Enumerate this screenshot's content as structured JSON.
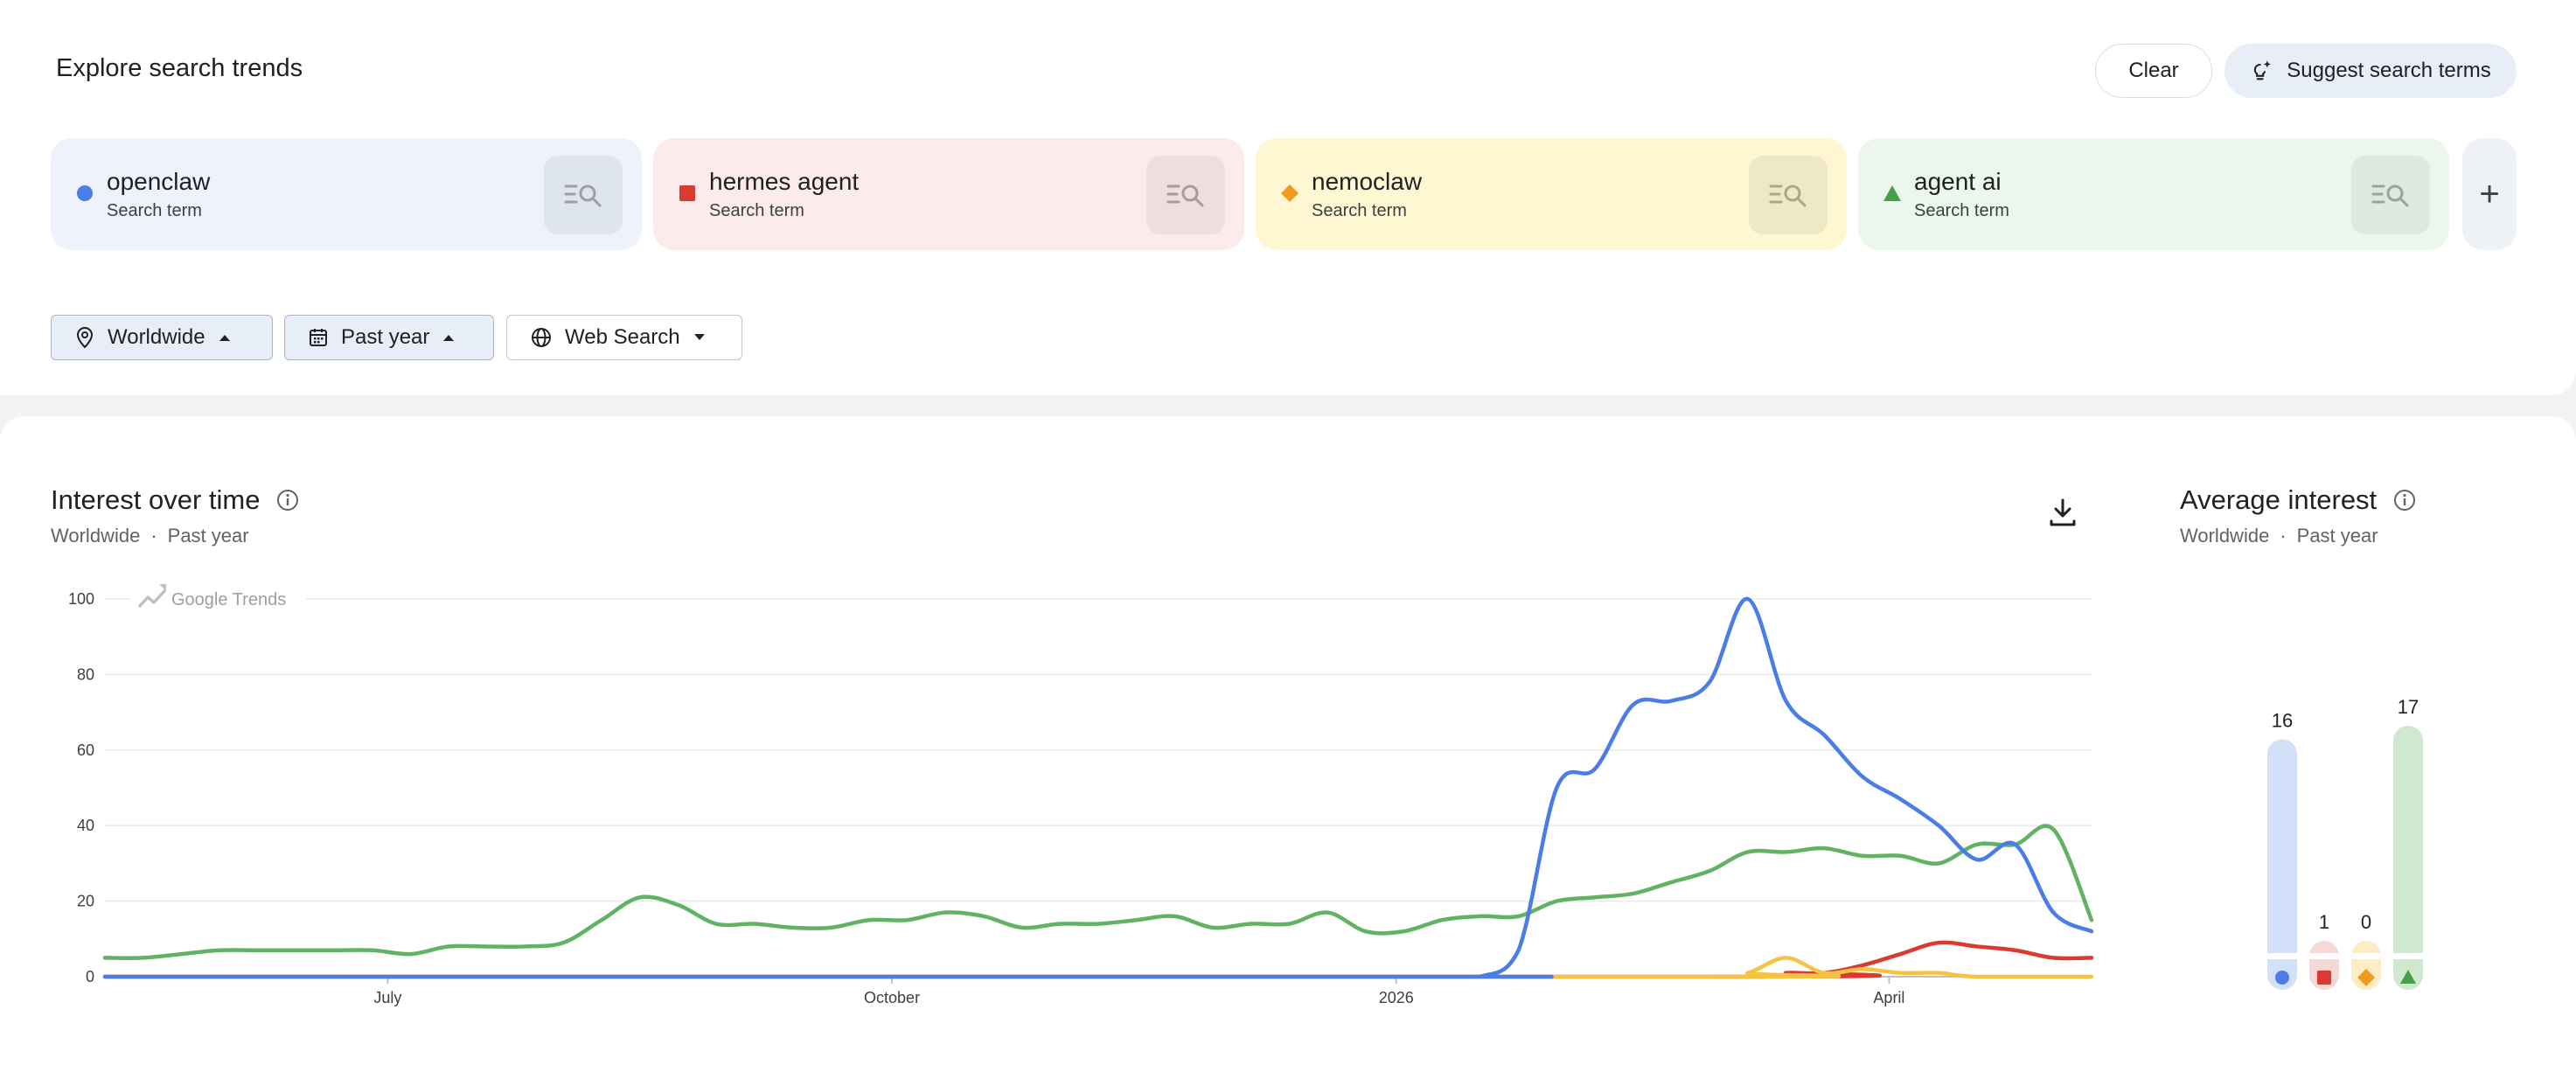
{
  "header": {
    "title": "Explore search trends",
    "clear_label": "Clear",
    "suggest_label": "Suggest search terms"
  },
  "terms": [
    {
      "name": "openclaw",
      "sub": "Search term",
      "color": "#4a7de8",
      "bg": "#edf2fb",
      "btn_bg": "#dfe5ef",
      "shape": "circle"
    },
    {
      "name": "hermes agent",
      "sub": "Search term",
      "color": "#d93b30",
      "bg": "#fbeceb",
      "btn_bg": "#eedfde",
      "shape": "square"
    },
    {
      "name": "nemoclaw",
      "sub": "Search term",
      "color": "#f09a1f",
      "bg": "#fef7d2",
      "btn_bg": "#efe8c5",
      "shape": "diamond"
    },
    {
      "name": "agent ai",
      "sub": "Search term",
      "color": "#43a047",
      "bg": "#ebf6ec",
      "btn_bg": "#dce9de",
      "shape": "triangle"
    }
  ],
  "add_term_label": "+",
  "filters": {
    "region": "Worldwide",
    "period": "Past year",
    "property": "Web Search"
  },
  "interest_over_time": {
    "title": "Interest over time",
    "sub_region": "Worldwide",
    "sub_sep": "·",
    "sub_period": "Past year",
    "watermark": "Google Trends"
  },
  "average_interest": {
    "title": "Average interest",
    "sub_region": "Worldwide",
    "sub_sep": "·",
    "sub_period": "Past year",
    "values": [
      16,
      1,
      0,
      17
    ]
  },
  "chart_data": {
    "type": "line",
    "x_range": [
      0,
      52
    ],
    "ylim": [
      0,
      100
    ],
    "yticks": [
      0,
      20,
      40,
      60,
      80,
      100
    ],
    "xtick_labels": [
      {
        "label": "July",
        "x": 7.4
      },
      {
        "label": "October",
        "x": 20.6
      },
      {
        "label": "2026",
        "x": 33.8
      },
      {
        "label": "April",
        "x": 46.7
      }
    ],
    "series": [
      {
        "term": 0,
        "color": "#4a7de8",
        "values": [
          [
            0,
            0
          ],
          [
            35,
            0
          ],
          [
            36,
            0
          ],
          [
            37,
            7
          ],
          [
            38,
            50
          ],
          [
            39,
            55
          ],
          [
            40,
            72
          ],
          [
            41,
            73
          ],
          [
            42,
            78
          ],
          [
            43,
            100
          ],
          [
            44,
            73
          ],
          [
            45,
            64
          ],
          [
            46,
            53
          ],
          [
            47,
            47
          ],
          [
            48,
            40
          ],
          [
            49,
            31
          ],
          [
            50,
            35
          ],
          [
            51,
            17
          ],
          [
            52,
            12
          ]
        ]
      },
      {
        "term": 1,
        "color": "#d93b30",
        "values": [
          [
            0,
            0
          ],
          [
            43,
            0
          ],
          [
            44,
            1
          ],
          [
            45,
            1
          ],
          [
            46,
            3
          ],
          [
            47,
            6
          ],
          [
            48,
            9
          ],
          [
            49,
            8
          ],
          [
            50,
            7
          ],
          [
            51,
            5
          ],
          [
            52,
            5
          ]
        ]
      },
      {
        "term": 2,
        "color": "#f5c341",
        "values": [
          [
            0,
            0
          ],
          [
            42,
            0
          ],
          [
            43,
            1
          ],
          [
            44,
            5
          ],
          [
            45,
            1
          ],
          [
            46,
            2
          ],
          [
            47,
            1
          ],
          [
            48,
            1
          ],
          [
            49,
            0
          ],
          [
            52,
            0
          ]
        ]
      },
      {
        "term": 3,
        "color": "#61b263",
        "values": [
          [
            0,
            5
          ],
          [
            1,
            5
          ],
          [
            2,
            6
          ],
          [
            3,
            7
          ],
          [
            4,
            7
          ],
          [
            5,
            7
          ],
          [
            6,
            7
          ],
          [
            7,
            7
          ],
          [
            8,
            6
          ],
          [
            9,
            8
          ],
          [
            10,
            8
          ],
          [
            11,
            8
          ],
          [
            12,
            9
          ],
          [
            13,
            15
          ],
          [
            14,
            21
          ],
          [
            15,
            19
          ],
          [
            16,
            14
          ],
          [
            17,
            14
          ],
          [
            18,
            13
          ],
          [
            19,
            13
          ],
          [
            20,
            15
          ],
          [
            21,
            15
          ],
          [
            22,
            17
          ],
          [
            23,
            16
          ],
          [
            24,
            13
          ],
          [
            25,
            14
          ],
          [
            26,
            14
          ],
          [
            27,
            15
          ],
          [
            28,
            16
          ],
          [
            29,
            13
          ],
          [
            30,
            14
          ],
          [
            31,
            14
          ],
          [
            32,
            17
          ],
          [
            33,
            12
          ],
          [
            34,
            12
          ],
          [
            35,
            15
          ],
          [
            36,
            16
          ],
          [
            37,
            16
          ],
          [
            38,
            20
          ],
          [
            39,
            21
          ],
          [
            40,
            22
          ],
          [
            41,
            25
          ],
          [
            42,
            28
          ],
          [
            43,
            33
          ],
          [
            44,
            33
          ],
          [
            45,
            34
          ],
          [
            46,
            32
          ],
          [
            47,
            32
          ],
          [
            48,
            30
          ],
          [
            49,
            35
          ],
          [
            50,
            35
          ],
          [
            51,
            39
          ],
          [
            52,
            15
          ]
        ]
      }
    ]
  }
}
